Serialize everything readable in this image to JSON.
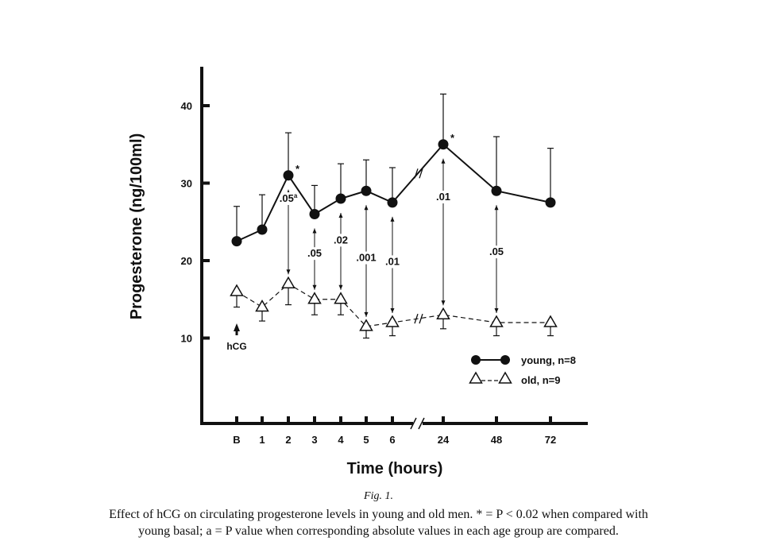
{
  "chart_data": {
    "type": "line",
    "xlabel": "Time (hours)",
    "ylabel": "Progesterone (ng/100ml)",
    "categories": [
      "B",
      "1",
      "2",
      "3",
      "4",
      "5",
      "6",
      "24",
      "48",
      "72"
    ],
    "yticks": [
      10,
      20,
      30,
      40
    ],
    "ylim": [
      0,
      45
    ],
    "axis_break_between": [
      "6",
      "24"
    ],
    "grid": false,
    "legend_placement": "right",
    "series": [
      {
        "name": "young, n=8",
        "marker": "filled-circle",
        "line": "solid",
        "values": [
          22.5,
          24,
          31,
          26,
          28,
          29,
          27.5,
          35,
          29,
          27.5
        ],
        "error_upper": [
          27,
          28.5,
          36.5,
          29.7,
          32.5,
          33,
          32,
          41.5,
          36,
          34.5
        ],
        "starred": [
          "2",
          "24"
        ]
      },
      {
        "name": "old, n=9",
        "marker": "open-triangle",
        "line": "dashed",
        "values": [
          16,
          14,
          17,
          15,
          15,
          11.5,
          12,
          13,
          12,
          12
        ],
        "error_lower": [
          14,
          12.2,
          14.3,
          13,
          13,
          10,
          10.3,
          11.2,
          10.3,
          10.3
        ]
      }
    ],
    "p_value_annotations": [
      {
        "x": "2",
        "label": ".05",
        "superscript": "a"
      },
      {
        "x": "3",
        "label": ".05"
      },
      {
        "x": "4",
        "label": ".02"
      },
      {
        "x": "5",
        "label": ".001"
      },
      {
        "x": "6",
        "label": ".01"
      },
      {
        "x": "24",
        "label": ".01"
      },
      {
        "x": "48",
        "label": ".05"
      }
    ],
    "annotations": [
      {
        "x": "B",
        "label": "hCG",
        "marker": "arrow-up"
      }
    ],
    "star_label": "*"
  },
  "caption": {
    "fig_label": "Fig. 1.",
    "line1": "Effect of hCG on circulating progesterone levels in young and old men. * = P < 0.02 when compared with",
    "line2": "young basal; a = P value when corresponding absolute values in each age group are compared."
  }
}
